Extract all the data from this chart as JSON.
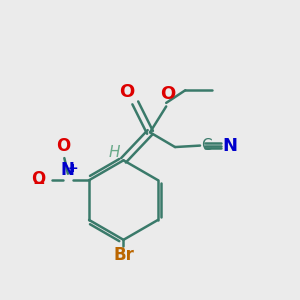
{
  "background_color": "#ebebeb",
  "bond_color": "#3a7a6a",
  "bond_width": 1.8,
  "atom_colors": {
    "O": "#dd0000",
    "N": "#0000cc",
    "Br": "#bb6600",
    "C": "#3a7a6a",
    "H": "#6aaa8a",
    "N_cn": "#0000cc"
  },
  "figsize": [
    3.0,
    3.0
  ],
  "dpi": 100
}
